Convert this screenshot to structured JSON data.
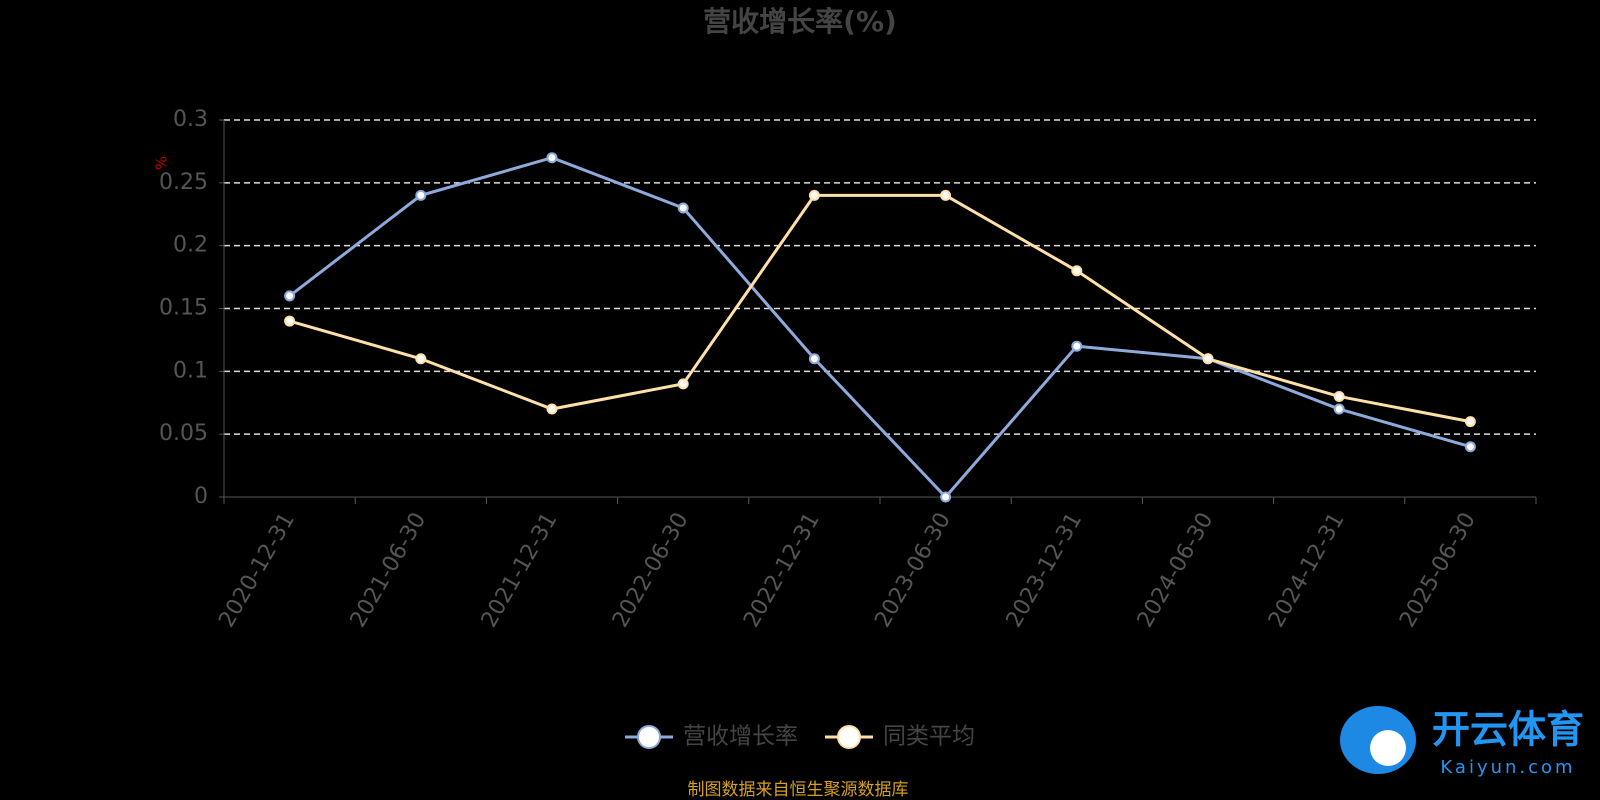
{
  "chart_data": {
    "type": "line",
    "title": "营收增长率(%)",
    "y_label": "%",
    "categories": [
      "2020-12-31",
      "2021-06-30",
      "2021-12-31",
      "2022-06-30",
      "2022-12-31",
      "2023-06-30",
      "2023-12-31",
      "2024-06-30",
      "2024-12-31",
      "2025-06-30"
    ],
    "series": [
      {
        "name": "营收增长率",
        "color": "#8eaadb",
        "values": [
          0.16,
          0.24,
          0.27,
          0.23,
          0.11,
          0,
          0.12,
          0.11,
          0.07,
          0.04
        ]
      },
      {
        "name": "同类平均",
        "color": "#ffe0a6",
        "values": [
          0.14,
          0.11,
          0.07,
          0.09,
          0.24,
          0.24,
          0.18,
          0.11,
          0.08,
          0.06
        ]
      }
    ],
    "ylim": [
      0,
      0.3
    ],
    "yticks": [
      0,
      0.05,
      0.1,
      0.15,
      0.2,
      0.25,
      0.3
    ],
    "grid": true,
    "legend": "bottom",
    "source": "制图数据来自恒生聚源数据库"
  },
  "watermark": {
    "name": "开云体育",
    "site": "Kaiyun.com"
  }
}
